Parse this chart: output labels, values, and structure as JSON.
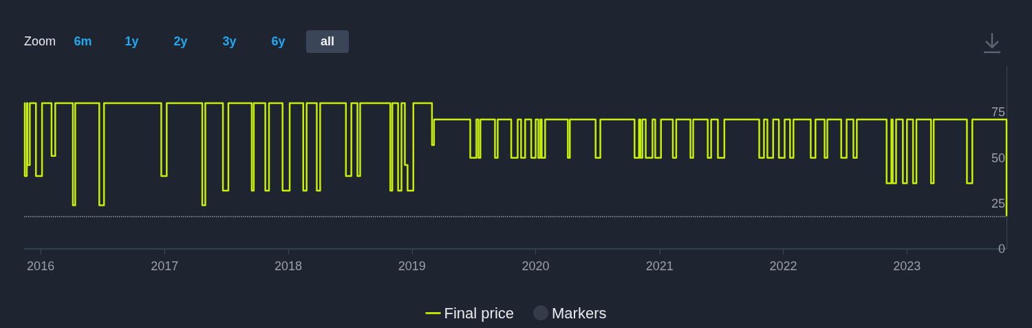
{
  "chart_data": {
    "type": "step",
    "annotations": [
      "Zoom",
      "6m",
      "1y",
      "2y",
      "3y",
      "6y",
      "all"
    ],
    "xlim": [
      "2015-11-13",
      "2023-10-22"
    ],
    "xticks": [
      "2016",
      "2017",
      "2018",
      "2019",
      "2020",
      "2021",
      "2022",
      "2023"
    ],
    "ylim": [
      0,
      100
    ],
    "yticks": [
      0,
      25,
      50,
      75
    ],
    "grid": false,
    "legend": "bottom",
    "marker": "none",
    "ref_lines": [
      {
        "axis": "y",
        "value": 18,
        "line_style": "dotted",
        "color": "#9aa0a8"
      }
    ],
    "series": [
      {
        "name": "Final price",
        "color": "#c8f000",
        "x": [
          "2015-11-13",
          "2015-11-15",
          "2015-11-21",
          "2015-11-23",
          "2015-11-30",
          "2015-12-18",
          "2016-01-05",
          "2016-02-02",
          "2016-02-13",
          "2016-04-05",
          "2016-04-12",
          "2016-06-22",
          "2016-07-06",
          "2016-12-22",
          "2017-01-07",
          "2017-04-22",
          "2017-05-01",
          "2017-06-22",
          "2017-07-08",
          "2017-09-15",
          "2017-09-21",
          "2017-10-25",
          "2017-11-05",
          "2017-12-15",
          "2018-01-05",
          "2018-02-14",
          "2018-02-24",
          "2018-03-26",
          "2018-04-05",
          "2018-06-20",
          "2018-07-06",
          "2018-07-24",
          "2018-08-01",
          "2018-10-29",
          "2018-11-04",
          "2018-11-21",
          "2018-12-01",
          "2018-12-11",
          "2018-12-19",
          "2019-01-05",
          "2019-03-01",
          "2019-03-07",
          "2019-06-22",
          "2019-07-10",
          "2019-07-16",
          "2019-07-22",
          "2019-09-03",
          "2019-09-11",
          "2019-10-21",
          "2019-11-09",
          "2019-11-19",
          "2019-12-01",
          "2019-12-19",
          "2020-01-01",
          "2020-01-09",
          "2020-01-15",
          "2020-01-19",
          "2020-01-29",
          "2020-04-05",
          "2020-04-11",
          "2020-06-26",
          "2020-07-10",
          "2020-10-19",
          "2020-11-01",
          "2020-11-05",
          "2020-11-11",
          "2020-11-21",
          "2020-12-11",
          "2020-12-19",
          "2021-01-05",
          "2021-02-09",
          "2021-02-19",
          "2021-04-02",
          "2021-04-10",
          "2021-05-23",
          "2021-06-02",
          "2021-06-22",
          "2021-07-11",
          "2021-10-22",
          "2021-11-05",
          "2021-11-15",
          "2021-12-02",
          "2021-12-19",
          "2022-01-05",
          "2022-01-21",
          "2022-01-31",
          "2022-03-23",
          "2022-04-06",
          "2022-05-03",
          "2022-05-11",
          "2022-06-21",
          "2022-07-07",
          "2022-07-27",
          "2022-08-06",
          "2022-11-02",
          "2022-11-16",
          "2022-11-20",
          "2022-11-30",
          "2022-12-20",
          "2023-01-01",
          "2023-01-19",
          "2023-01-29",
          "2023-03-13",
          "2023-03-21",
          "2023-06-27",
          "2023-07-13",
          "2023-10-22"
        ],
        "values": [
          80,
          40,
          80,
          46,
          80,
          40,
          80,
          51,
          80,
          24,
          80,
          24,
          80,
          40,
          80,
          24,
          80,
          32,
          80,
          32,
          80,
          32,
          80,
          32,
          80,
          32,
          80,
          32,
          80,
          40,
          80,
          40,
          80,
          32,
          80,
          32,
          80,
          46,
          32,
          80,
          57,
          71,
          50,
          71,
          50,
          71,
          50,
          71,
          50,
          71,
          50,
          71,
          50,
          71,
          50,
          71,
          50,
          71,
          50,
          71,
          50,
          71,
          50,
          71,
          50,
          71,
          50,
          71,
          50,
          71,
          50,
          71,
          50,
          71,
          50,
          71,
          50,
          71,
          50,
          71,
          50,
          71,
          50,
          71,
          50,
          71,
          50,
          71,
          50,
          71,
          50,
          71,
          50,
          71,
          36,
          71,
          36,
          71,
          36,
          71,
          36,
          71,
          36,
          71,
          36,
          71,
          18
        ]
      },
      {
        "name": "Markers",
        "type": "scatter",
        "color": "#3b4250"
      }
    ]
  }
}
